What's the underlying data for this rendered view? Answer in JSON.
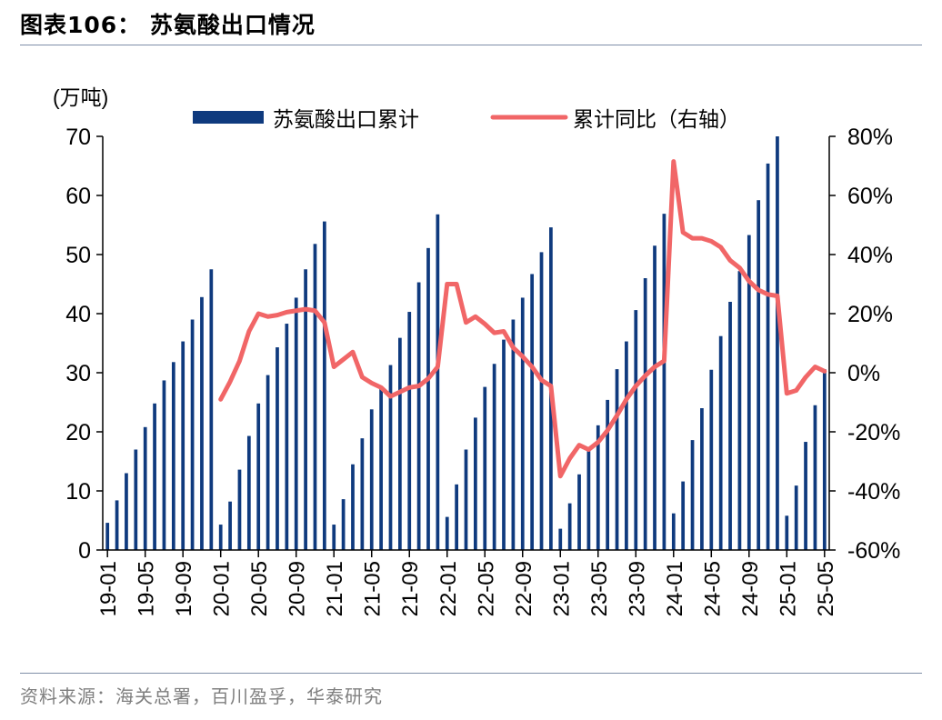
{
  "header": {
    "title": "图表106：  苏氨酸出口情况"
  },
  "footer": {
    "source": "资料来源：海关总署，百川盈孚，华泰研究"
  },
  "colors": {
    "bar": "#0f3a7e",
    "line": "#f16667",
    "axis": "#000000"
  },
  "chart_data": {
    "type": "bar+line",
    "left_unit": "(万吨)",
    "categories": [
      "19-01",
      "19-02",
      "19-03",
      "19-04",
      "19-05",
      "19-06",
      "19-07",
      "19-08",
      "19-09",
      "19-10",
      "19-11",
      "19-12",
      "20-01",
      "20-02",
      "20-03",
      "20-04",
      "20-05",
      "20-06",
      "20-07",
      "20-08",
      "20-09",
      "20-10",
      "20-11",
      "20-12",
      "21-01",
      "21-02",
      "21-03",
      "21-04",
      "21-05",
      "21-06",
      "21-07",
      "21-08",
      "21-09",
      "21-10",
      "21-11",
      "21-12",
      "22-01",
      "22-02",
      "22-03",
      "22-04",
      "22-05",
      "22-06",
      "22-07",
      "22-08",
      "22-09",
      "22-10",
      "22-11",
      "22-12",
      "23-01",
      "23-02",
      "23-03",
      "23-04",
      "23-05",
      "23-06",
      "23-07",
      "23-08",
      "23-09",
      "23-10",
      "23-11",
      "23-12",
      "24-01",
      "24-02",
      "24-03",
      "24-04",
      "24-05",
      "24-06",
      "24-07",
      "24-08",
      "24-09",
      "24-10",
      "24-11",
      "24-12",
      "25-01",
      "25-02",
      "25-03",
      "25-04",
      "25-05"
    ],
    "xtick_labels": [
      "19-01",
      "19-05",
      "19-09",
      "20-01",
      "20-05",
      "20-09",
      "21-01",
      "21-05",
      "21-09",
      "22-01",
      "22-05",
      "22-09",
      "23-01",
      "23-05",
      "23-09",
      "24-01",
      "24-05",
      "24-09",
      "25-01",
      "25-05"
    ],
    "series": [
      {
        "name": "苏氨酸出口累计",
        "type": "bar",
        "axis": "left",
        "values": [
          4.6,
          8.4,
          13.0,
          17.0,
          20.8,
          24.8,
          28.7,
          31.8,
          35.3,
          39.0,
          42.8,
          47.5,
          4.3,
          8.2,
          13.6,
          19.3,
          24.8,
          29.6,
          34.3,
          38.3,
          42.7,
          47.5,
          51.8,
          55.6,
          4.3,
          8.6,
          14.5,
          18.9,
          23.8,
          27.6,
          31.3,
          35.9,
          40.3,
          45.3,
          51.1,
          56.8,
          5.6,
          11.1,
          17.0,
          22.4,
          27.6,
          31.5,
          35.6,
          39.0,
          42.7,
          46.7,
          50.4,
          54.6,
          3.6,
          7.9,
          12.8,
          16.8,
          21.1,
          25.4,
          30.6,
          35.3,
          40.6,
          46.0,
          51.5,
          56.9,
          6.2,
          11.6,
          18.6,
          24.0,
          30.5,
          36.2,
          42.0,
          47.2,
          53.3,
          59.2,
          65.4,
          70.0,
          5.8,
          10.9,
          18.3,
          24.5,
          30.6
        ]
      },
      {
        "name": "累计同比（右轴）",
        "type": "line",
        "axis": "right",
        "values": [
          null,
          null,
          null,
          null,
          null,
          null,
          null,
          null,
          null,
          null,
          null,
          null,
          -9,
          -3,
          4,
          14,
          20,
          19,
          19.5,
          20.5,
          21,
          21.5,
          21,
          17,
          2,
          4.5,
          7,
          -1.5,
          -3.5,
          -5,
          -8,
          -6.5,
          -5,
          -4.5,
          -2,
          2,
          30,
          30,
          17,
          19,
          16.5,
          13.5,
          14,
          8.5,
          5.5,
          2,
          -2.5,
          -4.5,
          -35,
          -29,
          -24.5,
          -26,
          -23.5,
          -19.5,
          -14.5,
          -9,
          -4.5,
          -1,
          2,
          4,
          71.5,
          47.5,
          45.5,
          45.5,
          44.5,
          42.5,
          38,
          35.5,
          31,
          28,
          26.5,
          26,
          -7,
          -6,
          -1.5,
          2,
          0.5
        ]
      }
    ],
    "left_axis": {
      "min": 0,
      "max": 70,
      "step": 10,
      "tick_labels": [
        "0",
        "10",
        "20",
        "30",
        "40",
        "50",
        "60",
        "70"
      ]
    },
    "right_axis": {
      "min": -60,
      "max": 80,
      "step": 20,
      "tick_labels": [
        "-60%",
        "-40%",
        "-20%",
        "0%",
        "20%",
        "40%",
        "60%",
        "80%"
      ]
    },
    "legend": {
      "position": "top",
      "entries": [
        "苏氨酸出口累计",
        "累计同比（右轴）"
      ]
    },
    "grid": false
  }
}
